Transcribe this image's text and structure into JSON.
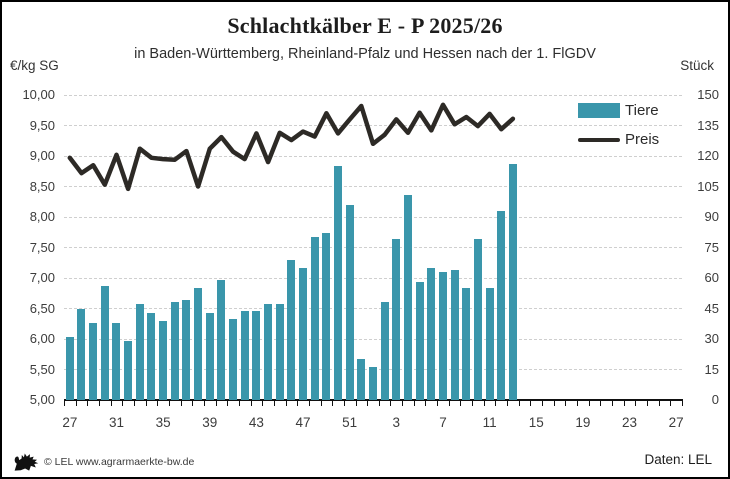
{
  "header": {
    "title": "Schlachtkälber E - P 2025/26",
    "subtitle": "in Baden-Württemberg, Rheinland-Pfalz und Hessen nach der 1. FlGDV"
  },
  "footer": {
    "copyright": "© LEL www.agrarmaerkte-bw.de",
    "source": "Daten: LEL",
    "logo": "lel-lion-logo"
  },
  "colors": {
    "bars": "#3a96ab",
    "line": "#2d2a26",
    "grid": "#cfcfcf",
    "axis": "#111111",
    "background": "#ffffff"
  },
  "chart_data": {
    "type": "bar+line",
    "title": "Schlachtkälber E - P 2025/26",
    "subtitle": "in Baden-Württemberg, Rheinland-Pfalz und Hessen nach der 1. FlGDV",
    "grid": "horizontal-dashed",
    "legend_position": "top-right",
    "left_axis": {
      "label": "€/kg SG",
      "min": 5.0,
      "max": 10.0,
      "step": 0.5,
      "ticks": [
        "10,00",
        "9,50",
        "9,00",
        "8,50",
        "8,00",
        "7,50",
        "7,00",
        "6,50",
        "6,00",
        "5,50",
        "5,00"
      ]
    },
    "right_axis": {
      "label": "Stück",
      "min": 0,
      "max": 150,
      "step": 15,
      "ticks": [
        "150",
        "135",
        "120",
        "105",
        "90",
        "75",
        "60",
        "45",
        "30",
        "15",
        "0"
      ]
    },
    "x_axis": {
      "description": "calendar weeks, week 27/2025 through week 27/2026",
      "total_slots": 53,
      "label_slot_step": 4,
      "tick_labels": [
        "27",
        "31",
        "35",
        "39",
        "43",
        "47",
        "51",
        "3",
        "7",
        "11",
        "15",
        "19",
        "23",
        "27"
      ]
    },
    "weeks": [
      "27",
      "28",
      "29",
      "30",
      "31",
      "32",
      "33",
      "34",
      "35",
      "36",
      "37",
      "38",
      "39",
      "40",
      "41",
      "42",
      "43",
      "44",
      "45",
      "46",
      "47",
      "48",
      "49",
      "50",
      "51",
      "52",
      "1",
      "2",
      "3",
      "4",
      "5",
      "6",
      "7",
      "8",
      "9",
      "10",
      "11",
      "12",
      "13"
    ],
    "series": [
      {
        "name": "Tiere",
        "type": "bar",
        "axis": "right",
        "unit": "Stück",
        "values": [
          31,
          45,
          38,
          56,
          38,
          29,
          47,
          43,
          39,
          48,
          49,
          55,
          43,
          59,
          40,
          44,
          44,
          47,
          47,
          69,
          65,
          80,
          82,
          115,
          96,
          20,
          16,
          48,
          79,
          101,
          58,
          65,
          63,
          64,
          55,
          79,
          55,
          93,
          116
        ]
      },
      {
        "name": "Preis",
        "type": "line",
        "axis": "left",
        "unit": "€/kg SG",
        "values": [
          8.97,
          8.72,
          8.85,
          8.53,
          9.02,
          8.46,
          9.12,
          8.97,
          8.95,
          8.94,
          9.08,
          8.5,
          9.12,
          9.31,
          9.07,
          8.95,
          9.37,
          8.9,
          9.38,
          9.26,
          9.4,
          9.32,
          9.7,
          9.37,
          9.6,
          9.82,
          9.2,
          9.35,
          9.6,
          9.38,
          9.71,
          9.42,
          9.84,
          9.52,
          9.64,
          9.49,
          9.69,
          9.44,
          9.61
        ]
      }
    ]
  }
}
